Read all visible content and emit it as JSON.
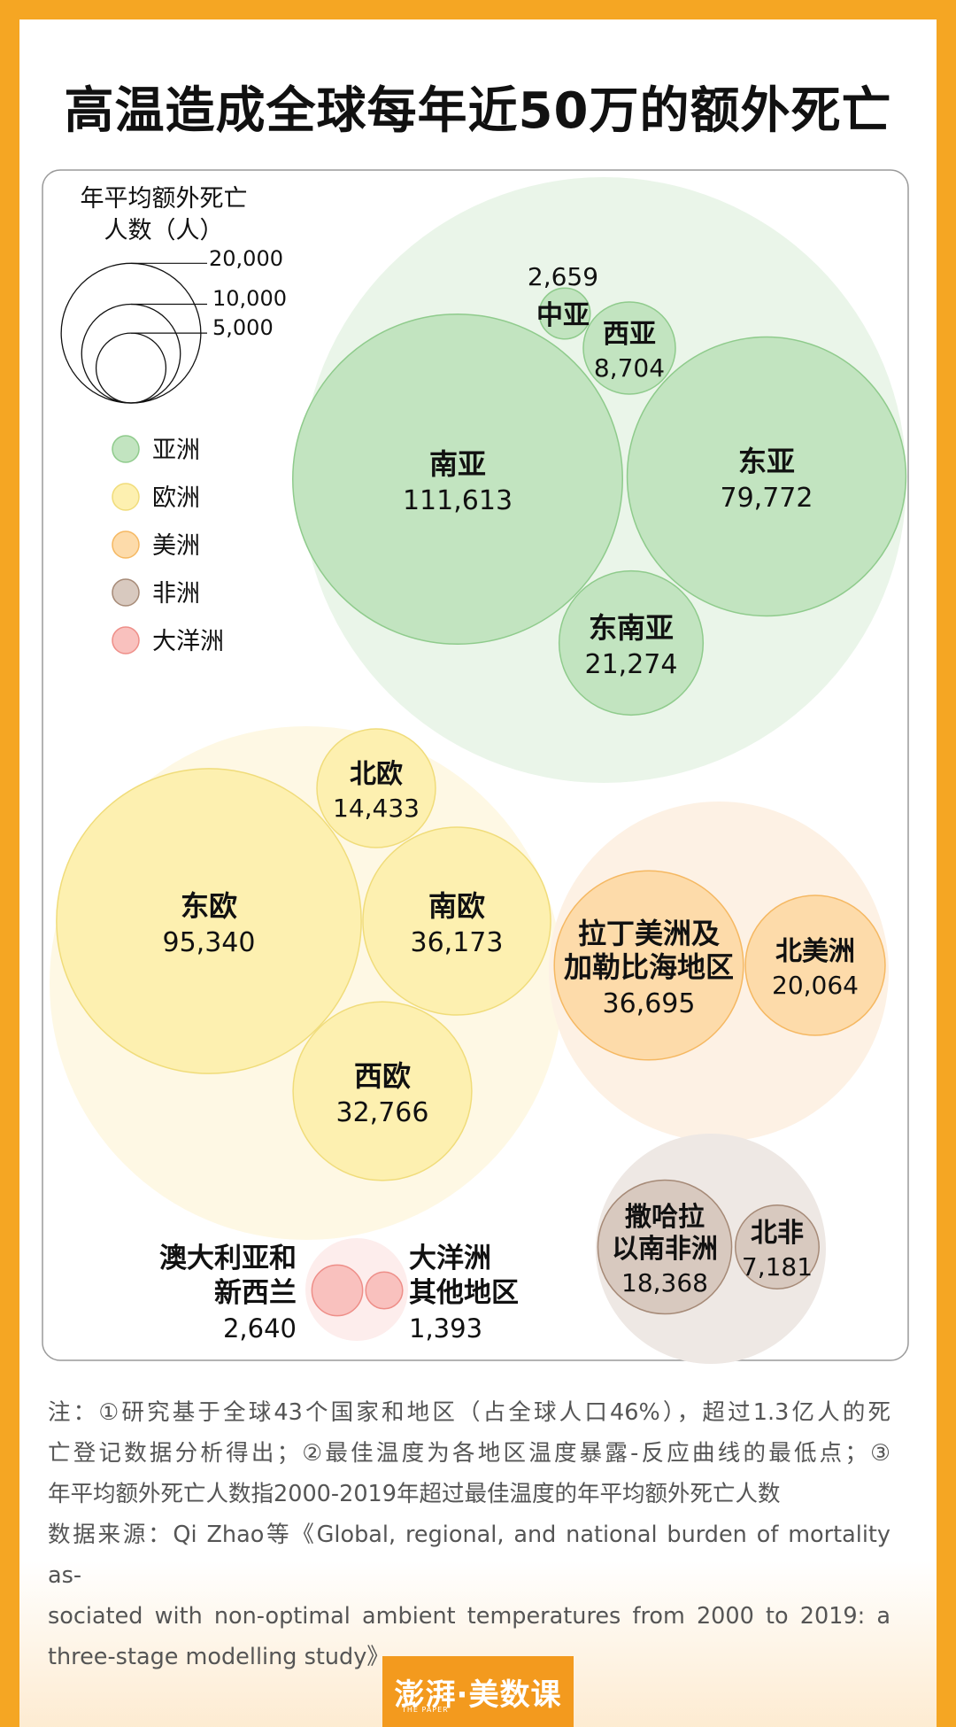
{
  "title": "高温造成全球每年近50万的额外死亡",
  "chart_data": {
    "type": "packed-bubble",
    "size_legend_title_line1": "年平均额外死亡",
    "size_legend_title_line2": "人数（人）",
    "size_legend_values": [
      "20,000",
      "10,000",
      "5,000"
    ],
    "groups": [
      {
        "name": "亚洲",
        "color": "#C2E4C0",
        "stroke": "#8FCB8C",
        "bg": "#EAF5E9"
      },
      {
        "name": "欧洲",
        "color": "#FDF0B0",
        "stroke": "#F0DC7A",
        "bg": "#FEF8E4"
      },
      {
        "name": "美洲",
        "color": "#FDDBAA",
        "stroke": "#F5B862",
        "bg": "#FDF1E4"
      },
      {
        "name": "非洲",
        "color": "#D8C9BF",
        "stroke": "#A68A77",
        "bg": "#EEE8E4"
      },
      {
        "name": "大洋洲",
        "color": "#F9C1BE",
        "stroke": "#EE8E88",
        "bg": "#FDEDEC"
      }
    ],
    "regions": [
      {
        "group": "亚洲",
        "name": "南亚",
        "value": 111613,
        "label": "111,613"
      },
      {
        "group": "亚洲",
        "name": "东亚",
        "value": 79772,
        "label": "79,772"
      },
      {
        "group": "亚洲",
        "name": "东南亚",
        "value": 21274,
        "label": "21,274"
      },
      {
        "group": "亚洲",
        "name": "西亚",
        "value": 8704,
        "label": "8,704"
      },
      {
        "group": "亚洲",
        "name": "中亚",
        "value": 2659,
        "label": "2,659"
      },
      {
        "group": "欧洲",
        "name": "东欧",
        "value": 95340,
        "label": "95,340"
      },
      {
        "group": "欧洲",
        "name": "南欧",
        "value": 36173,
        "label": "36,173"
      },
      {
        "group": "欧洲",
        "name": "西欧",
        "value": 32766,
        "label": "32,766"
      },
      {
        "group": "欧洲",
        "name": "北欧",
        "value": 14433,
        "label": "14,433"
      },
      {
        "group": "美洲",
        "name": "拉丁美洲及|加勒比海地区",
        "value": 36695,
        "label": "36,695"
      },
      {
        "group": "美洲",
        "name": "北美洲",
        "value": 20064,
        "label": "20,064"
      },
      {
        "group": "非洲",
        "name": "撒哈拉|以南非洲",
        "value": 18368,
        "label": "18,368"
      },
      {
        "group": "非洲",
        "name": "北非",
        "value": 7181,
        "label": "7,181"
      },
      {
        "group": "大洋洲",
        "name": "澳大利亚和|新西兰",
        "value": 2640,
        "label": "2,640"
      },
      {
        "group": "大洋洲",
        "name": "大洋洲|其他地区",
        "value": 1393,
        "label": "1,393"
      }
    ]
  },
  "notes": {
    "line1": "注：①研究基于全球43个国家和地区（占全球人口46%），超过1.3亿人的死",
    "line2": "亡登记数据分析得出；②最佳温度为各地区温度暴露-反应曲线的最低点；③",
    "line3": "年平均额外死亡人数指2000-2019年超过最佳温度的年平均额外死亡人数",
    "line4": "数据来源：Qi Zhao等《Global, regional, and national burden of mortality as-",
    "line5": "sociated with non-optimal ambient temperatures from 2000 to 2019: a",
    "line6": "three-stage modelling study》"
  },
  "logo": {
    "text": "澎湃·美数课",
    "subtext": "THE PAPER"
  }
}
